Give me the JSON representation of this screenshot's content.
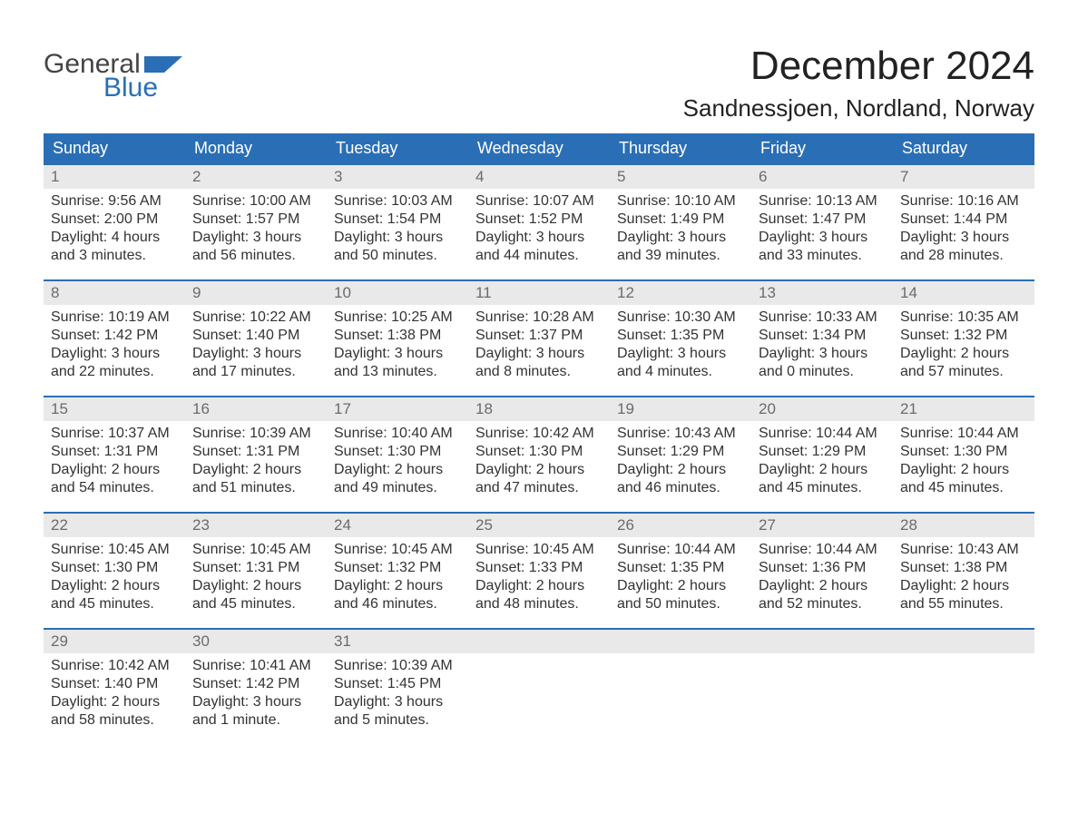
{
  "logo": {
    "line1": "General",
    "line2": "Blue",
    "brand_color": "#2a6fb5"
  },
  "header": {
    "title": "December 2024",
    "location": "Sandnessjoen, Nordland, Norway"
  },
  "calendar": {
    "type": "table",
    "columns": [
      "Sunday",
      "Monday",
      "Tuesday",
      "Wednesday",
      "Thursday",
      "Friday",
      "Saturday"
    ],
    "header_bg": "#2a6fb5",
    "header_text_color": "#ffffff",
    "daynum_bg": "#e9e9e9",
    "daynum_color": "#6b6b6b",
    "row_border_color": "#2a6fb5",
    "body_text_color": "#333333",
    "font_family": "Arial",
    "header_fontsize": 18,
    "body_fontsize": 16,
    "weeks": [
      [
        {
          "day": "1",
          "sunrise": "Sunrise: 9:56 AM",
          "sunset": "Sunset: 2:00 PM",
          "daylight1": "Daylight: 4 hours",
          "daylight2": "and 3 minutes."
        },
        {
          "day": "2",
          "sunrise": "Sunrise: 10:00 AM",
          "sunset": "Sunset: 1:57 PM",
          "daylight1": "Daylight: 3 hours",
          "daylight2": "and 56 minutes."
        },
        {
          "day": "3",
          "sunrise": "Sunrise: 10:03 AM",
          "sunset": "Sunset: 1:54 PM",
          "daylight1": "Daylight: 3 hours",
          "daylight2": "and 50 minutes."
        },
        {
          "day": "4",
          "sunrise": "Sunrise: 10:07 AM",
          "sunset": "Sunset: 1:52 PM",
          "daylight1": "Daylight: 3 hours",
          "daylight2": "and 44 minutes."
        },
        {
          "day": "5",
          "sunrise": "Sunrise: 10:10 AM",
          "sunset": "Sunset: 1:49 PM",
          "daylight1": "Daylight: 3 hours",
          "daylight2": "and 39 minutes."
        },
        {
          "day": "6",
          "sunrise": "Sunrise: 10:13 AM",
          "sunset": "Sunset: 1:47 PM",
          "daylight1": "Daylight: 3 hours",
          "daylight2": "and 33 minutes."
        },
        {
          "day": "7",
          "sunrise": "Sunrise: 10:16 AM",
          "sunset": "Sunset: 1:44 PM",
          "daylight1": "Daylight: 3 hours",
          "daylight2": "and 28 minutes."
        }
      ],
      [
        {
          "day": "8",
          "sunrise": "Sunrise: 10:19 AM",
          "sunset": "Sunset: 1:42 PM",
          "daylight1": "Daylight: 3 hours",
          "daylight2": "and 22 minutes."
        },
        {
          "day": "9",
          "sunrise": "Sunrise: 10:22 AM",
          "sunset": "Sunset: 1:40 PM",
          "daylight1": "Daylight: 3 hours",
          "daylight2": "and 17 minutes."
        },
        {
          "day": "10",
          "sunrise": "Sunrise: 10:25 AM",
          "sunset": "Sunset: 1:38 PM",
          "daylight1": "Daylight: 3 hours",
          "daylight2": "and 13 minutes."
        },
        {
          "day": "11",
          "sunrise": "Sunrise: 10:28 AM",
          "sunset": "Sunset: 1:37 PM",
          "daylight1": "Daylight: 3 hours",
          "daylight2": "and 8 minutes."
        },
        {
          "day": "12",
          "sunrise": "Sunrise: 10:30 AM",
          "sunset": "Sunset: 1:35 PM",
          "daylight1": "Daylight: 3 hours",
          "daylight2": "and 4 minutes."
        },
        {
          "day": "13",
          "sunrise": "Sunrise: 10:33 AM",
          "sunset": "Sunset: 1:34 PM",
          "daylight1": "Daylight: 3 hours",
          "daylight2": "and 0 minutes."
        },
        {
          "day": "14",
          "sunrise": "Sunrise: 10:35 AM",
          "sunset": "Sunset: 1:32 PM",
          "daylight1": "Daylight: 2 hours",
          "daylight2": "and 57 minutes."
        }
      ],
      [
        {
          "day": "15",
          "sunrise": "Sunrise: 10:37 AM",
          "sunset": "Sunset: 1:31 PM",
          "daylight1": "Daylight: 2 hours",
          "daylight2": "and 54 minutes."
        },
        {
          "day": "16",
          "sunrise": "Sunrise: 10:39 AM",
          "sunset": "Sunset: 1:31 PM",
          "daylight1": "Daylight: 2 hours",
          "daylight2": "and 51 minutes."
        },
        {
          "day": "17",
          "sunrise": "Sunrise: 10:40 AM",
          "sunset": "Sunset: 1:30 PM",
          "daylight1": "Daylight: 2 hours",
          "daylight2": "and 49 minutes."
        },
        {
          "day": "18",
          "sunrise": "Sunrise: 10:42 AM",
          "sunset": "Sunset: 1:30 PM",
          "daylight1": "Daylight: 2 hours",
          "daylight2": "and 47 minutes."
        },
        {
          "day": "19",
          "sunrise": "Sunrise: 10:43 AM",
          "sunset": "Sunset: 1:29 PM",
          "daylight1": "Daylight: 2 hours",
          "daylight2": "and 46 minutes."
        },
        {
          "day": "20",
          "sunrise": "Sunrise: 10:44 AM",
          "sunset": "Sunset: 1:29 PM",
          "daylight1": "Daylight: 2 hours",
          "daylight2": "and 45 minutes."
        },
        {
          "day": "21",
          "sunrise": "Sunrise: 10:44 AM",
          "sunset": "Sunset: 1:30 PM",
          "daylight1": "Daylight: 2 hours",
          "daylight2": "and 45 minutes."
        }
      ],
      [
        {
          "day": "22",
          "sunrise": "Sunrise: 10:45 AM",
          "sunset": "Sunset: 1:30 PM",
          "daylight1": "Daylight: 2 hours",
          "daylight2": "and 45 minutes."
        },
        {
          "day": "23",
          "sunrise": "Sunrise: 10:45 AM",
          "sunset": "Sunset: 1:31 PM",
          "daylight1": "Daylight: 2 hours",
          "daylight2": "and 45 minutes."
        },
        {
          "day": "24",
          "sunrise": "Sunrise: 10:45 AM",
          "sunset": "Sunset: 1:32 PM",
          "daylight1": "Daylight: 2 hours",
          "daylight2": "and 46 minutes."
        },
        {
          "day": "25",
          "sunrise": "Sunrise: 10:45 AM",
          "sunset": "Sunset: 1:33 PM",
          "daylight1": "Daylight: 2 hours",
          "daylight2": "and 48 minutes."
        },
        {
          "day": "26",
          "sunrise": "Sunrise: 10:44 AM",
          "sunset": "Sunset: 1:35 PM",
          "daylight1": "Daylight: 2 hours",
          "daylight2": "and 50 minutes."
        },
        {
          "day": "27",
          "sunrise": "Sunrise: 10:44 AM",
          "sunset": "Sunset: 1:36 PM",
          "daylight1": "Daylight: 2 hours",
          "daylight2": "and 52 minutes."
        },
        {
          "day": "28",
          "sunrise": "Sunrise: 10:43 AM",
          "sunset": "Sunset: 1:38 PM",
          "daylight1": "Daylight: 2 hours",
          "daylight2": "and 55 minutes."
        }
      ],
      [
        {
          "day": "29",
          "sunrise": "Sunrise: 10:42 AM",
          "sunset": "Sunset: 1:40 PM",
          "daylight1": "Daylight: 2 hours",
          "daylight2": "and 58 minutes."
        },
        {
          "day": "30",
          "sunrise": "Sunrise: 10:41 AM",
          "sunset": "Sunset: 1:42 PM",
          "daylight1": "Daylight: 3 hours",
          "daylight2": "and 1 minute."
        },
        {
          "day": "31",
          "sunrise": "Sunrise: 10:39 AM",
          "sunset": "Sunset: 1:45 PM",
          "daylight1": "Daylight: 3 hours",
          "daylight2": "and 5 minutes."
        },
        {
          "empty": true
        },
        {
          "empty": true
        },
        {
          "empty": true
        },
        {
          "empty": true
        }
      ]
    ]
  }
}
